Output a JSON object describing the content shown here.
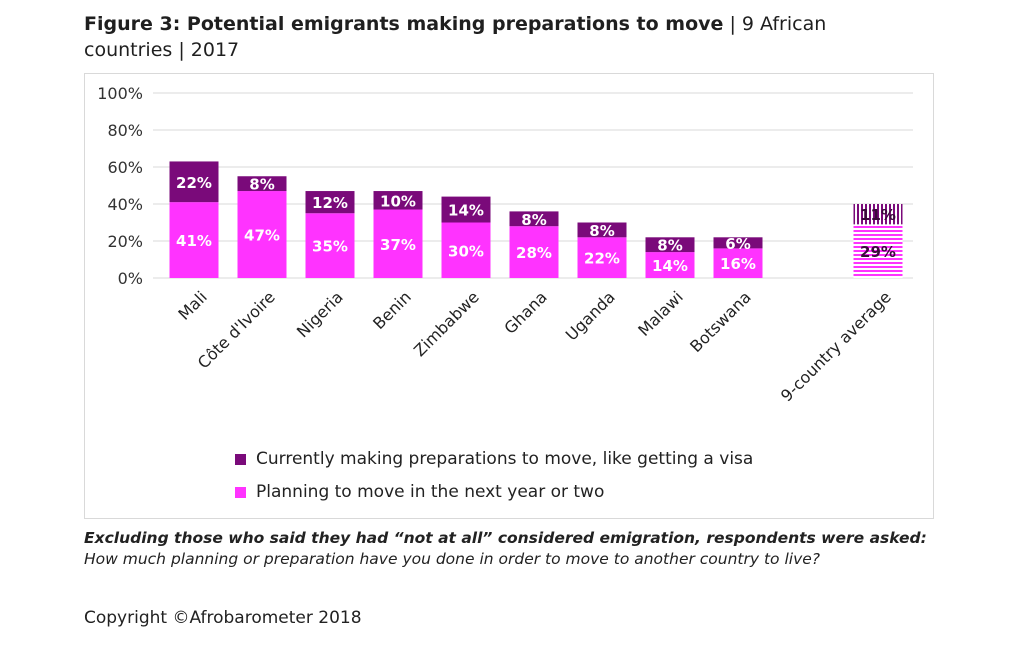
{
  "title": {
    "main": "Figure 3: Potential emigrants making preparations to move",
    "sub": " | 9 African countries | 2017"
  },
  "chart_data": {
    "type": "bar",
    "stacked": true,
    "categories": [
      "Mali",
      "Côte d'Ivoire",
      "Nigeria",
      "Benin",
      "Zimbabwe",
      "Ghana",
      "Uganda",
      "Malawi",
      "Botswana",
      "9-country average"
    ],
    "series": [
      {
        "name": "Planning to move in the next year or two",
        "color": "#ff33ff",
        "values": [
          41,
          47,
          35,
          37,
          30,
          28,
          22,
          14,
          16,
          29
        ],
        "labels": [
          "41%",
          "47%",
          "35%",
          "37%",
          "30%",
          "28%",
          "22%",
          "14%",
          "16%",
          "29%"
        ]
      },
      {
        "name": "Currently making preparations to move, like getting a visa",
        "color": "#7a0a7a",
        "values": [
          22,
          8,
          12,
          10,
          14,
          8,
          8,
          8,
          6,
          11
        ],
        "labels": [
          "22%",
          "8%",
          "12%",
          "10%",
          "14%",
          "8%",
          "8%",
          "8%",
          "6%",
          "11%"
        ]
      }
    ],
    "yticks": [
      "0%",
      "20%",
      "40%",
      "60%",
      "80%",
      "100%"
    ],
    "ylim": [
      0,
      100
    ],
    "grid": true,
    "legend_position": "bottom",
    "xlabel": "",
    "ylabel": ""
  },
  "legend": {
    "preparing": "Currently making preparations to move, like getting a visa",
    "planning": "Planning to move in the next year or two"
  },
  "note": {
    "bold": "Excluding those who said they had “not at all” considered emigration, respondents were asked:",
    "rest": " How much planning or preparation have you done in order to move to another country to live?"
  },
  "copyright": "Copyright ©Afrobarometer 2018"
}
